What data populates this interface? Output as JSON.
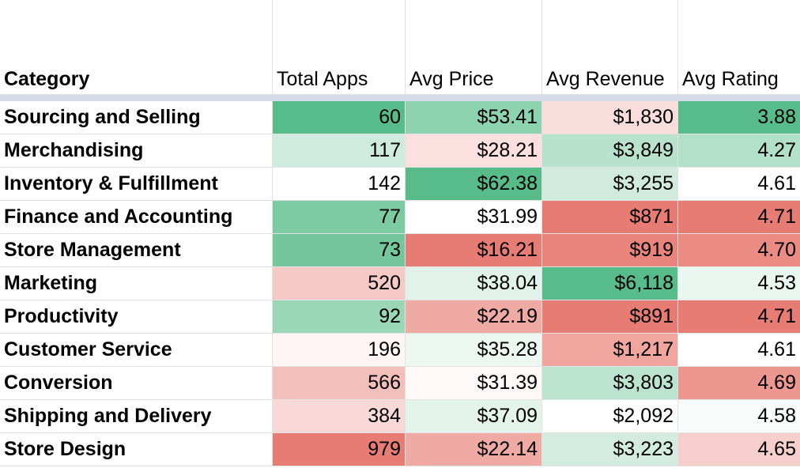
{
  "headers": [
    "Category",
    "Total Apps",
    "Avg Price",
    "Avg Revenue",
    "Avg Rating"
  ],
  "rows": [
    {
      "category": "Sourcing and Selling",
      "total_apps": "60",
      "avg_price": "$53.41",
      "avg_revenue": "$1,830",
      "avg_rating": "3.88",
      "bg": [
        "#57bb8a",
        "#8ed3b0",
        "#f8dddc",
        "#57bb8a"
      ]
    },
    {
      "category": "Merchandising",
      "total_apps": "117",
      "avg_price": "$28.21",
      "avg_revenue": "$3,849",
      "avg_rating": "4.27",
      "bg": [
        "#cfeadf",
        "#fbe0df",
        "#b8e2cd",
        "#b3e0ca"
      ]
    },
    {
      "category": "Inventory & Fulfillment",
      "total_apps": "142",
      "avg_price": "$62.38",
      "avg_revenue": "$3,255",
      "avg_rating": "4.61",
      "bg": [
        "#ffffff",
        "#57bb8a",
        "#d0ebde",
        "#ffffff"
      ]
    },
    {
      "category": "Finance and Accounting",
      "total_apps": "77",
      "avg_price": "$31.99",
      "avg_revenue": "$871",
      "avg_rating": "4.71",
      "bg": [
        "#7dcba2",
        "#ffffff",
        "#e67c73",
        "#e67c73"
      ]
    },
    {
      "category": "Store Management",
      "total_apps": "73",
      "avg_price": "$16.21",
      "avg_revenue": "$919",
      "avg_rating": "4.70",
      "bg": [
        "#74c79c",
        "#e67c73",
        "#e8847b",
        "#ea8c84"
      ]
    },
    {
      "category": "Marketing",
      "total_apps": "520",
      "avg_price": "$38.04",
      "avg_revenue": "$6,118",
      "avg_rating": "4.53",
      "bg": [
        "#f5c9c6",
        "#e0f2e9",
        "#57bb8a",
        "#eaf6f0"
      ]
    },
    {
      "category": "Productivity",
      "total_apps": "92",
      "avg_price": "$22.19",
      "avg_revenue": "$891",
      "avg_rating": "4.71",
      "bg": [
        "#9ad7b6",
        "#f0aaa4",
        "#e67c73",
        "#e67c73"
      ]
    },
    {
      "category": "Customer Service",
      "total_apps": "196",
      "avg_price": "$35.28",
      "avg_revenue": "$1,217",
      "avg_rating": "4.61",
      "bg": [
        "#fef5f4",
        "#edf7f2",
        "#f0a59f",
        "#ffffff"
      ]
    },
    {
      "category": "Conversion",
      "total_apps": "566",
      "avg_price": "$31.39",
      "avg_revenue": "$3,803",
      "avg_rating": "4.69",
      "bg": [
        "#f3bfbb",
        "#fef9f8",
        "#bce3d0",
        "#ee9690"
      ]
    },
    {
      "category": "Shipping and Delivery",
      "total_apps": "384",
      "avg_price": "$37.09",
      "avg_revenue": "$2,092",
      "avg_rating": "4.58",
      "bg": [
        "#f8d9d7",
        "#e4f4ec",
        "#ffffff",
        "#f7fbf9"
      ]
    },
    {
      "category": "Store Design",
      "total_apps": "979",
      "avg_price": "$22.14",
      "avg_revenue": "$3,223",
      "avg_rating": "4.65",
      "bg": [
        "#e67c73",
        "#f0aaa4",
        "#d3ecdf",
        "#f6cfcc"
      ]
    }
  ]
}
